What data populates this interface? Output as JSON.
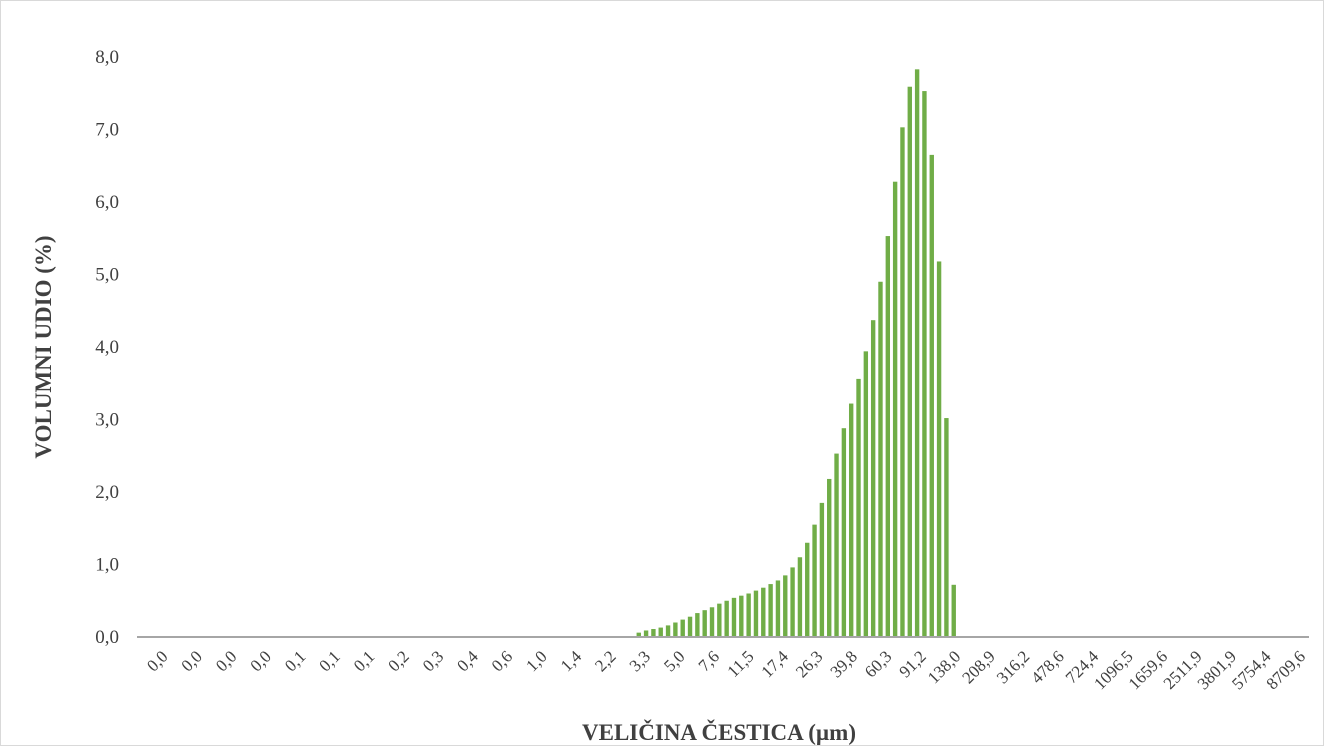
{
  "chart_data": {
    "type": "bar",
    "title": "",
    "xlabel": "VELIČINA ČESTICA (µm)",
    "ylabel": "VOLUMNI UDIO (%)",
    "ylim": [
      0,
      8
    ],
    "y_ticks": [
      "0,0",
      "1,0",
      "2,0",
      "3,0",
      "4,0",
      "5,0",
      "6,0",
      "7,0",
      "8,0"
    ],
    "x_tick_labels": [
      "0,0",
      "0,0",
      "0,0",
      "0,0",
      "0,1",
      "0,1",
      "0,1",
      "0,2",
      "0,3",
      "0,4",
      "0,6",
      "1,0",
      "1,4",
      "2,2",
      "3,3",
      "5,0",
      "7,6",
      "11,5",
      "17,4",
      "26,3",
      "39,8",
      "60,3",
      "91,2",
      "138,0",
      "208,9",
      "316,2",
      "478,6",
      "724,4",
      "1096,5",
      "1659,6",
      "2511,9",
      "3801,9",
      "5754,4",
      "8709,6"
    ],
    "grid": false,
    "legend": "none",
    "bar_color": "#70ad47",
    "axis_color": "#a6a6a6",
    "values": [
      0,
      0,
      0,
      0,
      0,
      0,
      0,
      0,
      0,
      0,
      0,
      0,
      0,
      0,
      0,
      0,
      0,
      0,
      0,
      0,
      0,
      0,
      0,
      0,
      0,
      0,
      0,
      0,
      0,
      0,
      0,
      0,
      0,
      0,
      0,
      0,
      0,
      0,
      0,
      0,
      0,
      0,
      0,
      0,
      0,
      0,
      0,
      0,
      0,
      0,
      0,
      0,
      0,
      0,
      0,
      0,
      0,
      0,
      0,
      0,
      0,
      0,
      0,
      0,
      0,
      0,
      0,
      0,
      0.06,
      0.09,
      0.11,
      0.13,
      0.16,
      0.2,
      0.24,
      0.28,
      0.33,
      0.37,
      0.41,
      0.46,
      0.5,
      0.54,
      0.57,
      0.6,
      0.64,
      0.68,
      0.73,
      0.78,
      0.85,
      0.96,
      1.1,
      1.3,
      1.55,
      1.85,
      2.18,
      2.53,
      2.88,
      3.22,
      3.56,
      3.94,
      4.37,
      4.9,
      5.53,
      6.28,
      7.03,
      7.59,
      7.83,
      7.53,
      6.65,
      5.18,
      3.02,
      0.72,
      0,
      0,
      0,
      0,
      0,
      0,
      0,
      0,
      0,
      0,
      0,
      0,
      0,
      0,
      0,
      0,
      0,
      0,
      0,
      0,
      0,
      0,
      0,
      0,
      0,
      0,
      0,
      0,
      0,
      0,
      0,
      0,
      0,
      0,
      0,
      0,
      0,
      0,
      0,
      0,
      0,
      0,
      0,
      0,
      0,
      0,
      0,
      0
    ]
  }
}
